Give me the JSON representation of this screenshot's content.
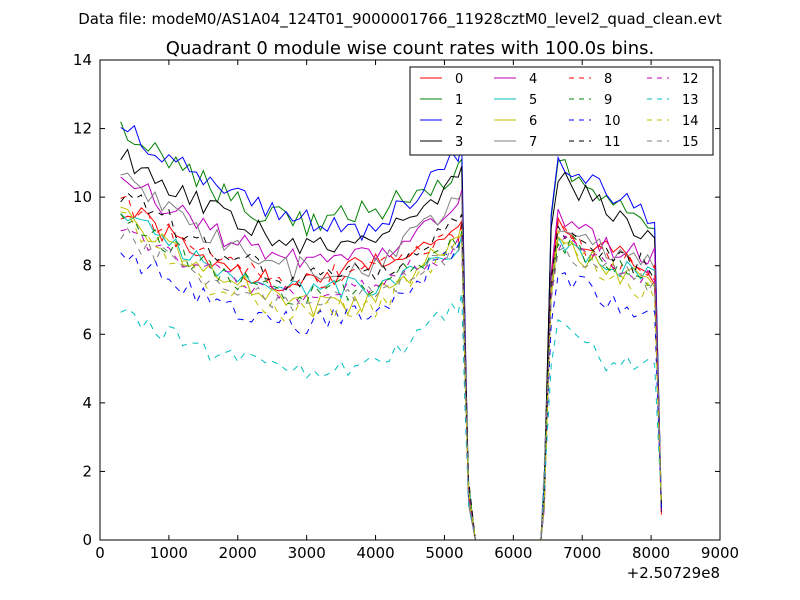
{
  "chart_data": {
    "type": "line",
    "suptitle": "Data file: modeM0/AS1A04_124T01_9000001766_11928cztM0_level2_quad_clean.evt",
    "title": "Quadrant 0 module wise count rates with 100.0s bins.",
    "xlabel": "",
    "ylabel": "",
    "xlim": [
      0,
      9000
    ],
    "ylim": [
      0,
      14
    ],
    "x_offset_label": "+2.50729e8",
    "x_ticks": [
      0,
      1000,
      2000,
      3000,
      4000,
      5000,
      6000,
      7000,
      8000,
      9000
    ],
    "x_tick_labels": [
      "0",
      "1000",
      "2000",
      "3000",
      "4000",
      "5000",
      "6000",
      "7000",
      "8000",
      "9000"
    ],
    "y_ticks": [
      0,
      2,
      4,
      6,
      8,
      10,
      12,
      14
    ],
    "y_tick_labels": [
      "0",
      "2",
      "4",
      "6",
      "8",
      "10",
      "12",
      "14"
    ],
    "legend_position": "top-right",
    "legend_columns": 4,
    "time_segments": [
      [
        300,
        5350
      ],
      [
        6450,
        8150
      ]
    ],
    "bin_step": 100,
    "series": [
      {
        "name": "0",
        "color": "#ff0000",
        "dash": "solid",
        "seg1_profile": [
          9.7,
          8.3,
          7.4,
          8.1,
          9.0
        ],
        "seg2_profile": [
          9.1,
          8.4,
          7.8
        ],
        "noise": 0.35
      },
      {
        "name": "1",
        "color": "#008000",
        "dash": "solid",
        "seg1_profile": [
          12.0,
          10.4,
          9.2,
          9.6,
          10.8
        ],
        "seg2_profile": [
          10.9,
          9.9,
          9.2
        ],
        "noise": 0.4
      },
      {
        "name": "2",
        "color": "#0000ff",
        "dash": "solid",
        "seg1_profile": [
          12.0,
          10.5,
          9.4,
          9.0,
          11.3
        ],
        "seg2_profile": [
          11.0,
          10.2,
          9.4
        ],
        "noise": 0.35
      },
      {
        "name": "3",
        "color": "#000000",
        "dash": "solid",
        "seg1_profile": [
          11.2,
          9.8,
          8.6,
          8.6,
          10.6
        ],
        "seg2_profile": [
          10.6,
          9.6,
          8.8
        ],
        "noise": 0.35
      },
      {
        "name": "4",
        "color": "#bf00bf",
        "dash": "solid",
        "seg1_profile": [
          10.6,
          9.0,
          8.2,
          8.2,
          9.9
        ],
        "seg2_profile": [
          9.3,
          8.6,
          8.2
        ],
        "noise": 0.35
      },
      {
        "name": "5",
        "color": "#00bfbf",
        "dash": "solid",
        "seg1_profile": [
          9.6,
          8.0,
          7.3,
          7.4,
          8.6
        ],
        "seg2_profile": [
          8.7,
          8.1,
          7.6
        ],
        "noise": 0.3
      },
      {
        "name": "6",
        "color": "#bfbf00",
        "dash": "solid",
        "seg1_profile": [
          9.6,
          7.9,
          6.8,
          7.0,
          8.9
        ],
        "seg2_profile": [
          8.6,
          7.9,
          7.4
        ],
        "noise": 0.35
      },
      {
        "name": "7",
        "color": "#808080",
        "dash": "solid",
        "seg1_profile": [
          10.5,
          8.9,
          7.9,
          8.0,
          9.8
        ],
        "seg2_profile": [
          9.0,
          8.4,
          8.1
        ],
        "noise": 0.35
      },
      {
        "name": "8",
        "color": "#ff0000",
        "dash": "dashed",
        "seg1_profile": [
          9.9,
          8.3,
          7.6,
          7.8,
          9.0
        ],
        "seg2_profile": [
          9.0,
          8.3,
          7.9
        ],
        "noise": 0.35
      },
      {
        "name": "9",
        "color": "#008000",
        "dash": "dashed",
        "seg1_profile": [
          9.5,
          7.9,
          7.2,
          7.4,
          8.7
        ],
        "seg2_profile": [
          8.8,
          8.0,
          7.5
        ],
        "noise": 0.35
      },
      {
        "name": "10",
        "color": "#0000ff",
        "dash": "dashed",
        "seg1_profile": [
          8.3,
          7.1,
          6.3,
          6.6,
          8.5
        ],
        "seg2_profile": [
          7.8,
          7.0,
          6.5
        ],
        "noise": 0.35
      },
      {
        "name": "11",
        "color": "#000000",
        "dash": "dashed",
        "seg1_profile": [
          10.2,
          8.6,
          7.6,
          7.8,
          9.2
        ],
        "seg2_profile": [
          9.1,
          8.3,
          7.9
        ],
        "noise": 0.35
      },
      {
        "name": "12",
        "color": "#bf00bf",
        "dash": "dashed",
        "seg1_profile": [
          9.1,
          7.9,
          7.1,
          7.3,
          8.6
        ],
        "seg2_profile": [
          8.7,
          8.0,
          7.6
        ],
        "noise": 0.3
      },
      {
        "name": "13",
        "color": "#00bfbf",
        "dash": "dashed",
        "seg1_profile": [
          6.6,
          5.5,
          4.9,
          5.0,
          6.9
        ],
        "seg2_profile": [
          6.6,
          5.1,
          5.0
        ],
        "noise": 0.3
      },
      {
        "name": "14",
        "color": "#bfbf00",
        "dash": "dashed",
        "seg1_profile": [
          9.4,
          7.5,
          6.6,
          6.8,
          8.6
        ],
        "seg2_profile": [
          8.7,
          7.8,
          7.1
        ],
        "noise": 0.35
      },
      {
        "name": "15",
        "color": "#808080",
        "dash": "dashed",
        "seg1_profile": [
          8.9,
          7.6,
          6.9,
          7.1,
          8.5
        ],
        "seg2_profile": [
          8.5,
          7.9,
          7.4
        ],
        "noise": 0.3
      }
    ]
  }
}
